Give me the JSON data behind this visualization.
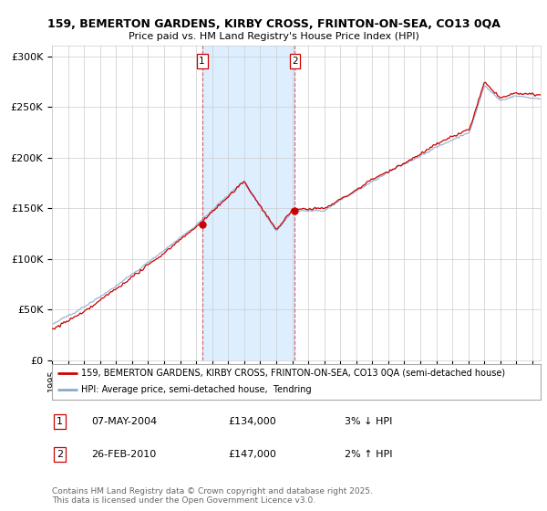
{
  "title1": "159, BEMERTON GARDENS, KIRBY CROSS, FRINTON-ON-SEA, CO13 0QA",
  "title2": "Price paid vs. HM Land Registry's House Price Index (HPI)",
  "ylabel_ticks": [
    "£0",
    "£50K",
    "£100K",
    "£150K",
    "£200K",
    "£250K",
    "£300K"
  ],
  "ytick_vals": [
    0,
    50000,
    100000,
    150000,
    200000,
    250000,
    300000
  ],
  "ylim": [
    0,
    310000
  ],
  "xlim_start": 1995,
  "xlim_end": 2025.5,
  "transaction1": {
    "label": "1",
    "date": "07-MAY-2004",
    "price": 134000,
    "pct": "3%",
    "dir": "↓"
  },
  "transaction2": {
    "label": "2",
    "date": "26-FEB-2010",
    "price": 147000,
    "pct": "2%",
    "dir": "↑"
  },
  "legend_line1": "159, BEMERTON GARDENS, KIRBY CROSS, FRINTON-ON-SEA, CO13 0QA (semi-detached house)",
  "legend_line2": "HPI: Average price, semi-detached house,  Tendring",
  "footer": "Contains HM Land Registry data © Crown copyright and database right 2025.\nThis data is licensed under the Open Government Licence v3.0.",
  "line_color_red": "#cc0000",
  "line_color_blue": "#88aacc",
  "shade_color": "#ddeeff",
  "grid_color": "#cccccc",
  "transaction1_x_year": 2004.37,
  "transaction2_x_year": 2010.17,
  "hpi_seed": 42,
  "noise_scale_hpi": 800,
  "noise_scale_price": 1200
}
